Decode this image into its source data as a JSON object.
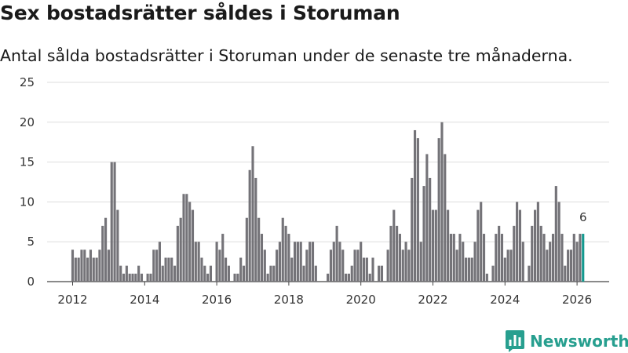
{
  "title": "Sex bostadsrätter såldes i Storuman",
  "subtitle": "Antal sålda bostadsrätter i Storuman under de senaste tre månaderna.",
  "brand": "Newsworthy",
  "colors": {
    "bar": "#747378",
    "highlight": "#14998f",
    "grid": "#dddddd",
    "brand": "#279f8f"
  },
  "chart_data": {
    "type": "bar",
    "title": "Sex bostadsrätter såldes i Storuman",
    "xlabel": "",
    "ylabel": "",
    "ylim": [
      0,
      25
    ],
    "yticks": [
      0,
      5,
      10,
      15,
      20,
      25
    ],
    "xticks": [
      "2012",
      "2014",
      "2016",
      "2018",
      "2020",
      "2022",
      "2024",
      "2026"
    ],
    "start": "2012-01",
    "end": "2026-03",
    "values": [
      4,
      3,
      3,
      4,
      4,
      3,
      4,
      3,
      3,
      4,
      7,
      8,
      4,
      15,
      15,
      9,
      2,
      1,
      2,
      1,
      1,
      1,
      2,
      1,
      0,
      1,
      1,
      4,
      4,
      5,
      2,
      3,
      3,
      3,
      2,
      7,
      8,
      11,
      11,
      10,
      9,
      5,
      5,
      3,
      2,
      1,
      2,
      0,
      5,
      4,
      6,
      3,
      2,
      0,
      1,
      1,
      3,
      2,
      8,
      14,
      17,
      13,
      8,
      6,
      4,
      1,
      2,
      2,
      4,
      5,
      8,
      7,
      6,
      3,
      5,
      5,
      5,
      2,
      4,
      5,
      5,
      2,
      0,
      0,
      0,
      1,
      4,
      5,
      7,
      5,
      4,
      1,
      1,
      2,
      4,
      4,
      5,
      3,
      3,
      1,
      3,
      0,
      2,
      2,
      0,
      4,
      7,
      9,
      7,
      6,
      4,
      5,
      4,
      13,
      19,
      18,
      5,
      12,
      16,
      13,
      9,
      9,
      18,
      20,
      16,
      9,
      6,
      6,
      4,
      6,
      5,
      3,
      3,
      3,
      5,
      9,
      10,
      6,
      1,
      0,
      2,
      6,
      7,
      6,
      3,
      4,
      4,
      7,
      10,
      9,
      5,
      0,
      2,
      7,
      9,
      10,
      7,
      6,
      4,
      5,
      6,
      12,
      10,
      6,
      2,
      4,
      4,
      6,
      5,
      6,
      6
    ],
    "annotation": {
      "label": "6",
      "month": "2026-03",
      "value": 6
    }
  }
}
